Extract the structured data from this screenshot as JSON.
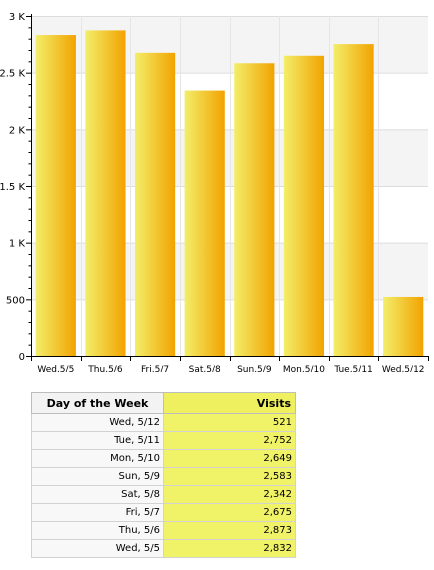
{
  "chart_data": {
    "type": "bar",
    "title": "",
    "xlabel": "",
    "ylabel": "",
    "categories": [
      "Wed.5/5",
      "Thu.5/6",
      "Fri.5/7",
      "Sat.5/8",
      "Sun.5/9",
      "Mon.5/10",
      "Tue.5/11",
      "Wed.5/12"
    ],
    "values": [
      2832,
      2873,
      2675,
      2342,
      2583,
      2649,
      2752,
      521
    ],
    "ylim": [
      0,
      3000
    ],
    "yticks": [
      0,
      500,
      1000,
      1500,
      2000,
      2500,
      3000
    ],
    "ytick_labels": [
      "0",
      "500",
      "1 K",
      "1.5 K",
      "2 K",
      "2.5 K",
      "3 K"
    ],
    "grid": true,
    "bar_colors": {
      "light": "#f3ee6a",
      "dark": "#f2a300"
    }
  },
  "table": {
    "headers": {
      "day": "Day of the Week",
      "visits": "Visits"
    },
    "rows": [
      {
        "day": "Wed, 5/12",
        "visits": "521"
      },
      {
        "day": "Tue, 5/11",
        "visits": "2,752"
      },
      {
        "day": "Mon, 5/10",
        "visits": "2,649"
      },
      {
        "day": "Sun, 5/9",
        "visits": "2,583"
      },
      {
        "day": "Sat, 5/8",
        "visits": "2,342"
      },
      {
        "day": "Fri, 5/7",
        "visits": "2,675"
      },
      {
        "day": "Thu, 5/6",
        "visits": "2,873"
      },
      {
        "day": "Wed, 5/5",
        "visits": "2,832"
      }
    ]
  }
}
